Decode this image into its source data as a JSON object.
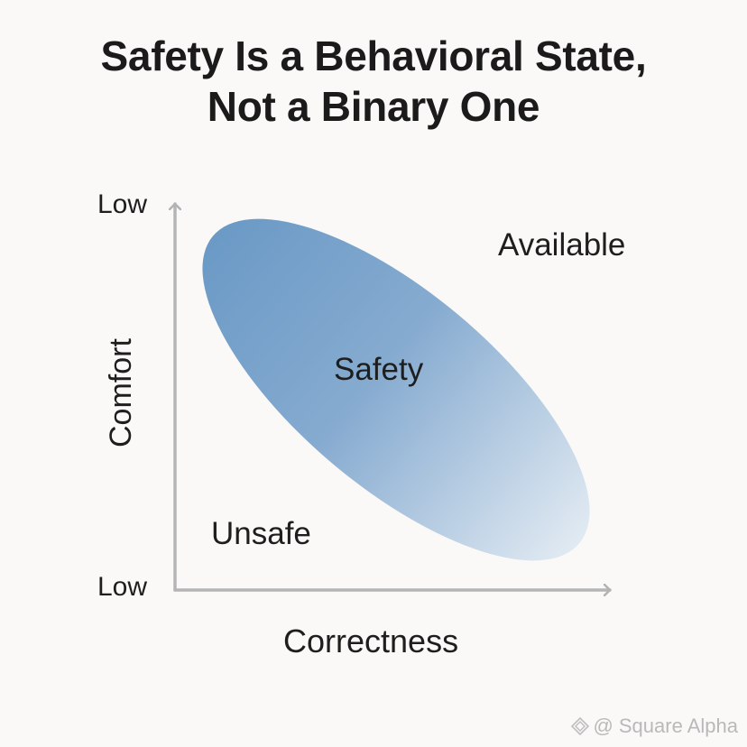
{
  "title": {
    "line1": "Safety Is a Behavioral State,",
    "line2": "Not a Binary One"
  },
  "axes": {
    "y_label": "Comfort",
    "x_label": "Correctness",
    "y_top_tick": "Low",
    "origin_tick": "Low"
  },
  "regions": {
    "available": "Available",
    "safety": "Safety",
    "unsafe": "Unsafe"
  },
  "watermark": {
    "text": "@ Square Alpha",
    "icon": "square-alpha-logo-icon"
  },
  "colors": {
    "ellipse_dark": "#6d9bc6",
    "ellipse_light": "#dde8f1",
    "axis": "#b5b5b5"
  }
}
